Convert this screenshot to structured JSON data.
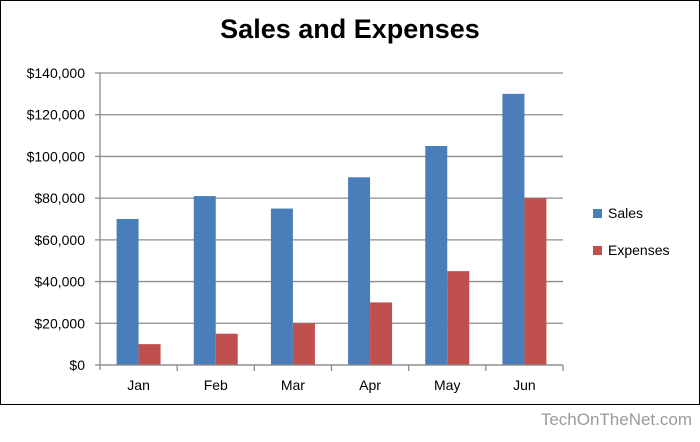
{
  "chart_data": {
    "type": "bar",
    "title": "Sales and Expenses",
    "categories": [
      "Jan",
      "Feb",
      "Mar",
      "Apr",
      "May",
      "Jun"
    ],
    "series": [
      {
        "name": "Sales",
        "color": "#4a7ebb",
        "values": [
          70000,
          81000,
          75000,
          90000,
          105000,
          130000
        ]
      },
      {
        "name": "Expenses",
        "color": "#c0504d",
        "values": [
          10000,
          15000,
          20000,
          30000,
          45000,
          80000
        ]
      }
    ],
    "ylim": [
      0,
      140000
    ],
    "yticks": [
      "$0",
      "$20,000",
      "$40,000",
      "$60,000",
      "$80,000",
      "$100,000",
      "$120,000",
      "$140,000"
    ],
    "grid": true,
    "legend": "right",
    "xlabel": "",
    "ylabel": ""
  },
  "watermark": "TechOnTheNet.com"
}
